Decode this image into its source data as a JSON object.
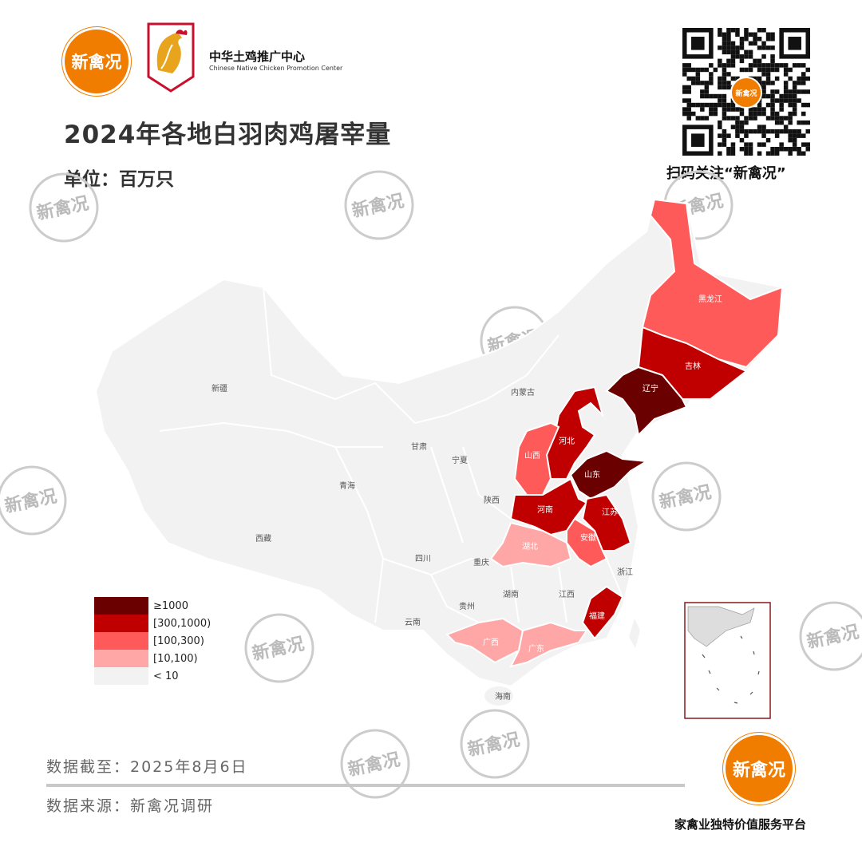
{
  "header": {
    "brand_logo_text": "新禽况",
    "center_name": "中华土鸡推广中心",
    "center_name_en": "Chinese Native Chicken Promotion Center",
    "title": "2024年各地白羽肉鸡屠宰量",
    "unit": "单位：百万只",
    "qr_center_text": "新禽况",
    "qr_caption": "扫码关注“新禽况”"
  },
  "watermark_text": "新禽况",
  "legend": [
    {
      "label": "≥1000",
      "color": "#6b0000"
    },
    {
      "label": "[300,1000)",
      "color": "#c00000"
    },
    {
      "label": "[100,300)",
      "color": "#ff5a5a"
    },
    {
      "label": "[10,100)",
      "color": "#ffa6a6"
    },
    {
      "label": "< 10",
      "color": "#f2f2f2"
    }
  ],
  "map": {
    "provinces": {
      "heilongjiang": {
        "name": "黑龙江",
        "class": "[100,300)"
      },
      "jilin": {
        "name": "吉林",
        "class": "[300,1000)"
      },
      "liaoning": {
        "name": "辽宁",
        "class": "≥1000"
      },
      "hebei": {
        "name": "河北",
        "class": "[300,1000)"
      },
      "shanxi": {
        "name": "山西",
        "class": "[100,300)"
      },
      "shandong": {
        "name": "山东",
        "class": "≥1000"
      },
      "henan": {
        "name": "河南",
        "class": "[300,1000)"
      },
      "jiangsu": {
        "name": "江苏",
        "class": "[300,1000)"
      },
      "anhui": {
        "name": "安徽",
        "class": "[100,300)"
      },
      "hubei": {
        "name": "湖北",
        "class": "[10,100)"
      },
      "fujian": {
        "name": "福建",
        "class": "[300,1000)"
      },
      "guangxi": {
        "name": "广西",
        "class": "[10,100)"
      },
      "guangdong": {
        "name": "广东",
        "class": "[10,100)"
      },
      "xinjiang": {
        "name": "新疆",
        "class": "< 10"
      },
      "neimenggu": {
        "name": "内蒙古",
        "class": "< 10"
      },
      "gansu": {
        "name": "甘肃",
        "class": "< 10"
      },
      "ningxia": {
        "name": "宁夏",
        "class": "< 10"
      },
      "qinghai": {
        "name": "青海",
        "class": "< 10"
      },
      "shaanxi": {
        "name": "陕西",
        "class": "< 10"
      },
      "xizang": {
        "name": "西藏",
        "class": "< 10"
      },
      "sichuan": {
        "name": "四川",
        "class": "< 10"
      },
      "chongqing": {
        "name": "重庆",
        "class": "< 10"
      },
      "zhejiang": {
        "name": "浙江",
        "class": "< 10"
      },
      "hunan": {
        "name": "湖南",
        "class": "< 10"
      },
      "jiangxi": {
        "name": "江西",
        "class": "< 10"
      },
      "guizhou": {
        "name": "贵州",
        "class": "< 10"
      },
      "yunnan": {
        "name": "云南",
        "class": "< 10"
      },
      "hainan": {
        "name": "海南",
        "class": "< 10"
      }
    }
  },
  "footer": {
    "data_date": "数据截至：2025年8月6日",
    "data_source": "数据来源：新禽况调研",
    "platform": "家禽业独特价值服务平台",
    "logo_text": "新禽况"
  }
}
